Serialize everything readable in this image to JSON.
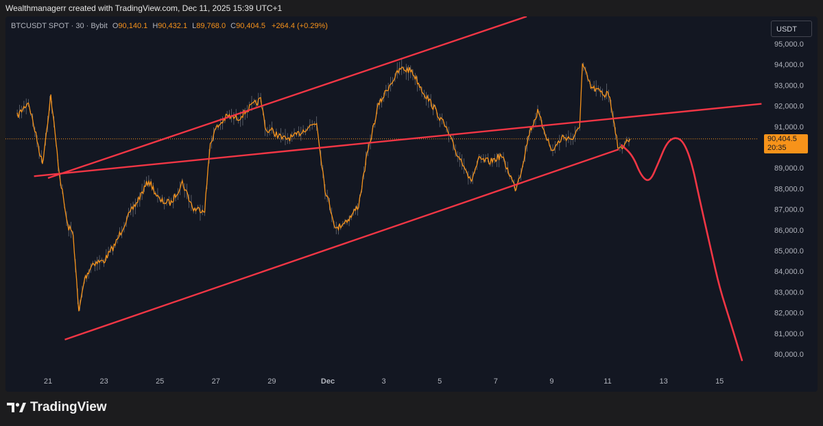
{
  "header": {
    "attribution": "Wealthmanagerr created with TradingView.com, Dec 11, 2025 15:39 UTC+1"
  },
  "legend": {
    "symbol": "BTCUSDT SPOT · 30 · Bybit",
    "open_label": "O",
    "open": "90,140.1",
    "high_label": "H",
    "high": "90,432.1",
    "low_label": "L",
    "low": "89,768.0",
    "close_label": "C",
    "close": "90,404.5",
    "change": "+264.4 (+0.29%)"
  },
  "currency_button": "USDT",
  "price_tag": {
    "price": "90,404.5",
    "countdown": "20:35"
  },
  "logo": {
    "text": "TradingView"
  },
  "colors": {
    "background": "#131722",
    "candles": "#f7931a",
    "wick": "#9aa0aa",
    "trendlines": "#f23645",
    "last_price_line": "#f7931a"
  },
  "chart_data": {
    "type": "line",
    "title": "",
    "xlabel": "",
    "ylabel": "",
    "x_ticks": [
      "21",
      "23",
      "25",
      "27",
      "29",
      "Dec",
      "3",
      "5",
      "7",
      "9",
      "11",
      "13",
      "15"
    ],
    "x_tick_days": [
      21,
      23,
      25,
      27,
      29,
      31,
      33,
      35,
      37,
      39,
      41,
      43,
      45
    ],
    "y_ticks": [
      "95,000.0",
      "94,000.0",
      "93,000.0",
      "92,000.0",
      "91,000.0",
      "90,000.0",
      "89,000.0",
      "88,000.0",
      "87,000.0",
      "86,000.0",
      "85,000.0",
      "84,000.0",
      "83,000.0",
      "82,000.0",
      "81,000.0",
      "80,000.0"
    ],
    "y_tick_values": [
      95000,
      94000,
      93000,
      92000,
      91000,
      90000,
      89000,
      88000,
      87000,
      86000,
      85000,
      84000,
      83000,
      82000,
      81000,
      80000
    ],
    "ylim": [
      79300,
      96200
    ],
    "last_price": 90404.5,
    "series": [
      {
        "values_x_day": [
          19.9,
          20.3,
          20.8,
          21.1,
          21.4,
          21.7,
          21.9,
          22.1,
          22.3,
          22.6,
          23.0,
          23.4,
          23.8,
          24.2,
          24.6,
          25.0,
          25.4,
          25.8,
          26.2,
          26.6,
          26.8,
          27.0,
          27.4,
          27.8,
          28.2,
          28.6,
          28.8,
          29.0,
          29.4,
          29.8,
          30.2,
          30.6,
          30.9,
          31.1,
          31.3,
          31.5,
          31.8,
          32.1,
          32.4,
          32.8,
          33.2,
          33.6,
          34.0,
          34.4,
          34.8,
          35.2,
          35.6,
          35.9,
          36.1,
          36.4,
          36.8,
          37.2,
          37.5,
          37.7,
          37.9,
          38.2,
          38.5,
          38.8,
          39.0,
          39.4,
          39.8,
          40.0,
          40.1,
          40.4,
          40.7,
          40.9,
          41.0,
          41.2,
          41.4,
          41.6,
          41.8
        ],
        "values": [
          91500,
          92200,
          89200,
          92500,
          88800,
          86200,
          85800,
          82000,
          83600,
          84400,
          84500,
          85300,
          86500,
          87400,
          88400,
          87400,
          87300,
          88300,
          87000,
          87000,
          90200,
          90900,
          91500,
          91400,
          91900,
          92300,
          90800,
          90800,
          90400,
          90500,
          90900,
          91200,
          88000,
          87000,
          86000,
          86300,
          86600,
          87200,
          89600,
          92000,
          93000,
          93800,
          93700,
          92700,
          91900,
          91000,
          89700,
          89100,
          88300,
          89400,
          89300,
          89600,
          88700,
          88000,
          88800,
          90700,
          91700,
          90600,
          89800,
          90500,
          90400,
          91100,
          94000,
          92900,
          92700,
          92500,
          92800,
          91500,
          89800,
          90200,
          90400
        ]
      },
      {
        "name": "",
        "values_x_day": [
          20.5,
          46.5
        ],
        "values": [
          88600,
          92100
        ]
      },
      {
        "name": "",
        "values_x_day": [
          21.6,
          41.4
        ],
        "values": [
          80700,
          89900
        ]
      },
      {
        "name": "",
        "values_x_day": [
          41.5,
          41.9,
          42.2,
          42.5,
          42.8,
          43.1,
          43.4,
          43.7,
          44.0,
          44.3,
          44.7,
          45.0,
          45.4,
          45.8
        ],
        "values": [
          90100,
          89600,
          88600,
          88300,
          89200,
          90200,
          90500,
          90300,
          89300,
          87400,
          85000,
          83200,
          81500,
          79700
        ]
      }
    ]
  }
}
